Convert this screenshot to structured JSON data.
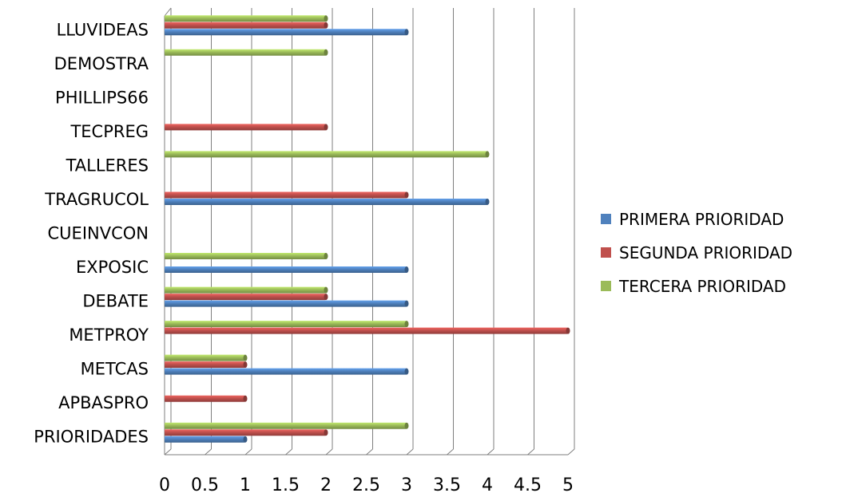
{
  "chart_data": {
    "type": "bar",
    "orientation": "horizontal",
    "categories": [
      "PRIORIDADES",
      "APBASPRO",
      "METCAS",
      "METPROY",
      "DEBATE",
      "EXPOSIC",
      "CUEINVCON",
      "TRAGRUCOL",
      "TALLERES",
      "TECPREG",
      "PHILLIPS66",
      "DEMOSTRA",
      "LLUVIDEAS"
    ],
    "series": [
      {
        "name": "PRIMERA PRIORIDAD",
        "color": "#4f81bd",
        "values": [
          1,
          0,
          3,
          0,
          3,
          3,
          0,
          4,
          0,
          0,
          0,
          0,
          3
        ]
      },
      {
        "name": "SEGUNDA PRIORIDAD",
        "color": "#c0504d",
        "values": [
          2,
          1,
          1,
          5,
          2,
          0,
          0,
          3,
          0,
          2,
          0,
          0,
          2
        ]
      },
      {
        "name": "TERCERA PRIORIDAD",
        "color": "#9bbb59",
        "values": [
          3,
          0,
          1,
          3,
          2,
          2,
          0,
          0,
          4,
          0,
          0,
          2,
          2
        ]
      }
    ],
    "xlim": [
      0,
      5
    ],
    "xticks": [
      "0",
      "0.5",
      "1",
      "1.5",
      "2",
      "2.5",
      "3",
      "3.5",
      "4",
      "4.5",
      "5"
    ],
    "grid": true,
    "legend_position": "right",
    "title": "",
    "xlabel": "",
    "ylabel": ""
  }
}
